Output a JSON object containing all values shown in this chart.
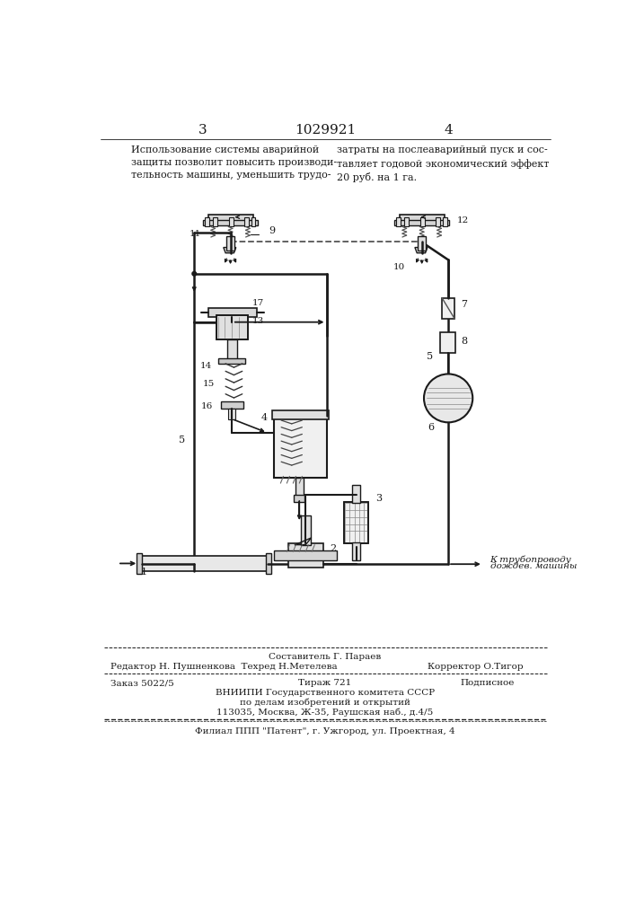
{
  "page_number_left": "3",
  "patent_number": "1029921",
  "page_number_right": "4",
  "text_left": "Использование системы аварийной\nзащиты позволит повысить производи-\nтельность машины, уменьшить трудо-",
  "text_right": "затраты на послеаварийный пуск и сос-\nтавляет годовой экономический эффект\n20 руб. на 1 га.",
  "footer_composer": "Составитель Г. Параев",
  "footer_editor": "Редактор Н. Пушненкова  Техред Н.Метелева",
  "footer_corrector": "Корректор О.Тигор",
  "footer_order": "Заказ 5022/5",
  "footer_circulation": "Тираж 721",
  "footer_type": "Подписное",
  "footer_org1": "ВНИИПИ Государственного комитета СССР",
  "footer_org2": "по делам изобретений и открытий",
  "footer_address": "113035, Москва, Ж-35, Раушская наб., д.4/5",
  "footer_branch": "Филиал ППП \"Патент\", г. Ужгород, ул. Проектная, 4",
  "bg_color": "#ffffff",
  "text_color": "#1a1a1a"
}
